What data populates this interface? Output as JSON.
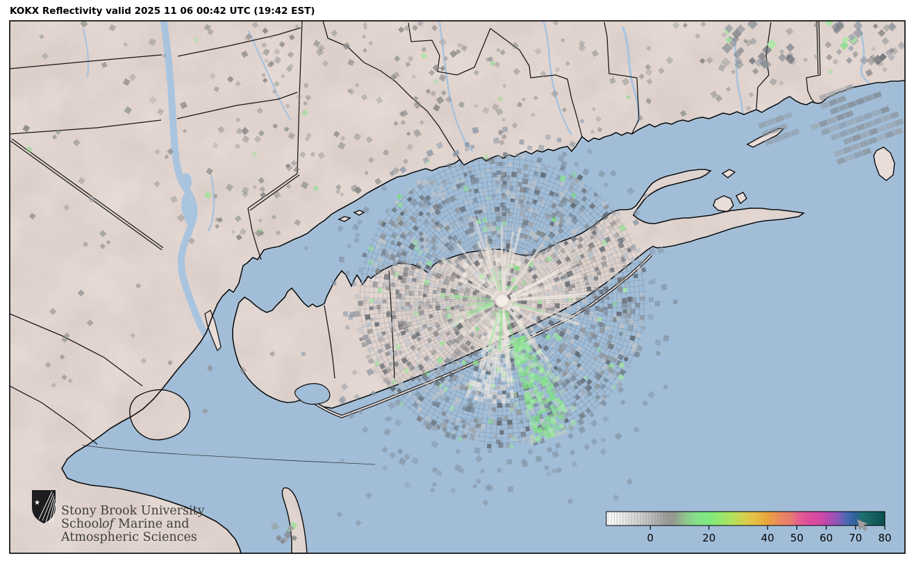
{
  "title": {
    "text": "KOKX Reflectivity valid 2025 11 06 00:42 UTC (19:42 EST)"
  },
  "colorbar": {
    "range": [
      -15,
      80
    ],
    "ticks": [
      {
        "value": 0,
        "label": "0"
      },
      {
        "value": 20,
        "label": "20"
      },
      {
        "value": 40,
        "label": "40"
      },
      {
        "value": 50,
        "label": "50"
      },
      {
        "value": 60,
        "label": "60"
      },
      {
        "value": 70,
        "label": "70"
      },
      {
        "value": 80,
        "label": "80"
      }
    ],
    "stops": [
      {
        "dbz": -15,
        "color": "#ffffff"
      },
      {
        "dbz": -10,
        "color": "#ededed"
      },
      {
        "dbz": -5,
        "color": "#d5d5d5"
      },
      {
        "dbz": 0,
        "color": "#bcbcbc"
      },
      {
        "dbz": 5,
        "color": "#9e9e9e"
      },
      {
        "dbz": 8,
        "color": "#93998f"
      },
      {
        "dbz": 12,
        "color": "#8fc48c"
      },
      {
        "dbz": 16,
        "color": "#85e189"
      },
      {
        "dbz": 20,
        "color": "#7dea80"
      },
      {
        "dbz": 24,
        "color": "#97e76e"
      },
      {
        "dbz": 28,
        "color": "#b4e15c"
      },
      {
        "dbz": 32,
        "color": "#d3d04f"
      },
      {
        "dbz": 36,
        "color": "#e7bc45"
      },
      {
        "dbz": 40,
        "color": "#eaa43c"
      },
      {
        "dbz": 44,
        "color": "#ea8a5e"
      },
      {
        "dbz": 48,
        "color": "#e87a70"
      },
      {
        "dbz": 50,
        "color": "#e4638b"
      },
      {
        "dbz": 54,
        "color": "#de4d9c"
      },
      {
        "dbz": 58,
        "color": "#d348a5"
      },
      {
        "dbz": 61,
        "color": "#b14cb0"
      },
      {
        "dbz": 64,
        "color": "#8a56b8"
      },
      {
        "dbz": 66,
        "color": "#5b64b4"
      },
      {
        "dbz": 68,
        "color": "#3c68ab"
      },
      {
        "dbz": 70,
        "color": "#2e619c"
      },
      {
        "dbz": 72,
        "color": "#1f6f75"
      },
      {
        "dbz": 76,
        "color": "#14605f"
      },
      {
        "dbz": 80,
        "color": "#0b4e4c"
      }
    ]
  },
  "logo": {
    "line1": "Stony Brook University",
    "line2a": "School",
    "line2b": "of",
    "line2c": "Marine and",
    "line3": "Atmospheric Sciences"
  },
  "colors": {
    "water": "#a1bdd8",
    "land": "#e9ddd8",
    "coast": "#0b0b0b",
    "boundary": "#141414",
    "river": "#a9c4de",
    "shoal": "#c3d4e3",
    "clutter_gray": "#8a8a8a",
    "clutter_green": "#8fe292",
    "radar_marker": "#f3ede7",
    "cursor": "#9f9f9f"
  }
}
